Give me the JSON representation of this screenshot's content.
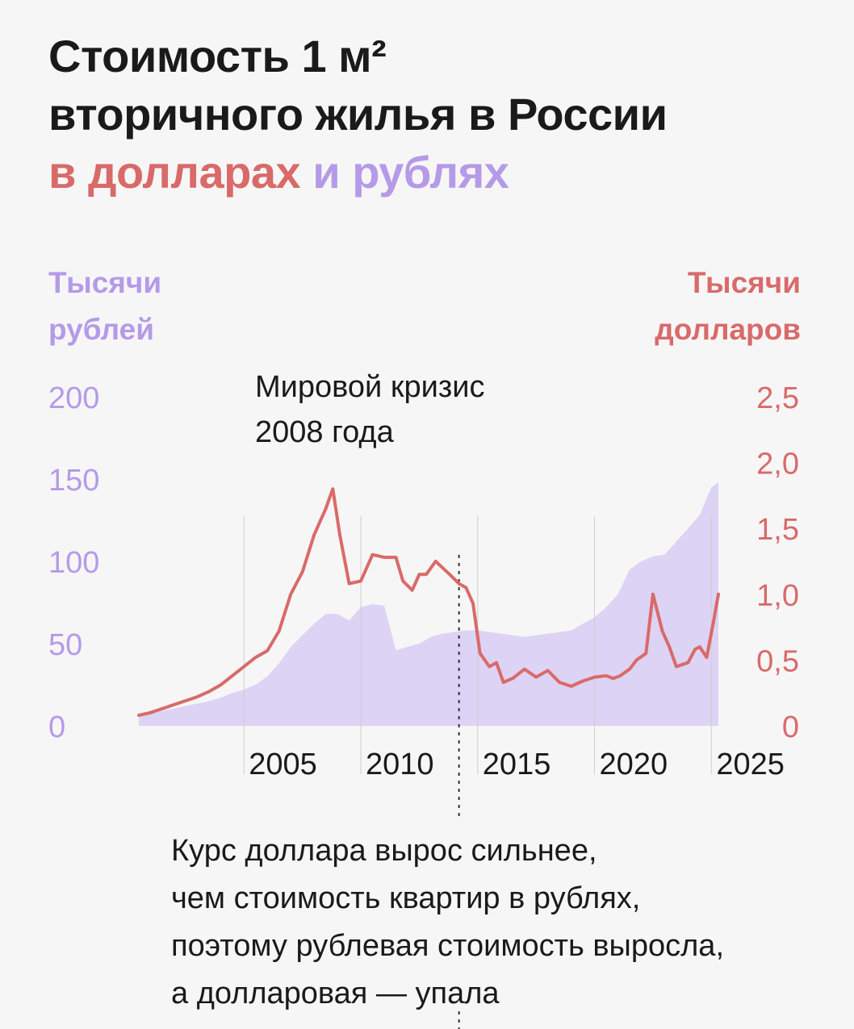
{
  "title": {
    "line1": "Стоимость 1 м²",
    "line2": "вторичного жилья в России",
    "usd_part": "в долларах",
    "and_part": "и рублях"
  },
  "left_axis_title": [
    "Тысячи",
    "рублей"
  ],
  "right_axis_title": [
    "Тысячи",
    "долларов"
  ],
  "annotations": {
    "crisis": [
      "Мировой кризис",
      "2008 года"
    ],
    "explanation": [
      "Курс доллара вырос сильнее,",
      "чем стоимость квартир в рублях,",
      "поэтому рублевая стоимость выросла,",
      "а долларовая — упала"
    ]
  },
  "colors": {
    "background": "#f7f6f6",
    "usd_line": "#d96a6a",
    "rub_area": "#ddd3f5",
    "rub_text": "#b59ae8",
    "text": "#1a1a1a"
  },
  "chart_data": {
    "type": "area",
    "xlim": [
      2000,
      2024.8
    ],
    "y_left": {
      "unit": "Тысячи рублей",
      "range": [
        0,
        200
      ],
      "ticks": [
        0,
        50,
        100,
        150,
        200
      ],
      "tick_labels": [
        "0",
        "50",
        "100",
        "150",
        "200"
      ]
    },
    "y_right": {
      "unit": "Тысячи долларов",
      "range": [
        0,
        2.5
      ],
      "ticks": [
        0,
        0.5,
        1.0,
        1.5,
        2.0,
        2.5
      ],
      "tick_labels": [
        "0",
        "0,5",
        "1,0",
        "1,5",
        "2,0",
        "2,5"
      ]
    },
    "x_ticks": [
      2005,
      2010,
      2015,
      2020,
      2025
    ],
    "x_tick_labels": [
      "2005",
      "2010",
      "2015",
      "2020",
      "2025"
    ],
    "series": [
      {
        "name": "в рублях",
        "axis": "left",
        "type": "area",
        "x": [
          2000,
          2000.5,
          2001,
          2001.5,
          2002,
          2002.5,
          2003,
          2003.5,
          2004,
          2004.5,
          2005,
          2005.5,
          2006,
          2006.5,
          2007,
          2007.5,
          2008,
          2008.5,
          2009,
          2009.5,
          2010,
          2010.5,
          2011,
          2011.5,
          2012,
          2012.5,
          2013,
          2013.5,
          2014,
          2014.5,
          2015,
          2015.5,
          2016,
          2016.5,
          2017,
          2017.5,
          2018,
          2018.5,
          2019,
          2019.5,
          2020,
          2020.5,
          2021,
          2021.5,
          2022,
          2022.5,
          2023,
          2023.5,
          2024,
          2024.5,
          2024.8
        ],
        "values": [
          6,
          7,
          9,
          10.5,
          12,
          13.5,
          15,
          17,
          20,
          22,
          25,
          30,
          38,
          48,
          55,
          62,
          68,
          68,
          64,
          72,
          74,
          73,
          46,
          48,
          50,
          54,
          56,
          57,
          58,
          58,
          57,
          56,
          55,
          54,
          55,
          56,
          57,
          58,
          62,
          66,
          72,
          80,
          95,
          100,
          103,
          104,
          112,
          120,
          128,
          145,
          148
        ]
      },
      {
        "name": "в долларах",
        "axis": "right",
        "type": "line",
        "x": [
          2000,
          2000.5,
          2001,
          2001.5,
          2002,
          2002.5,
          2003,
          2003.5,
          2004,
          2004.5,
          2005,
          2005.5,
          2006,
          2006.5,
          2007,
          2007.5,
          2008,
          2008.3,
          2008.6,
          2009,
          2009.5,
          2010,
          2010.5,
          2011,
          2011.3,
          2011.7,
          2012,
          2012.3,
          2012.7,
          2013,
          2013.3,
          2013.7,
          2014,
          2014.3,
          2014.6,
          2015,
          2015.3,
          2015.6,
          2016,
          2016.5,
          2017,
          2017.5,
          2018,
          2018.5,
          2019,
          2019.5,
          2020,
          2020.3,
          2020.6,
          2021,
          2021.3,
          2021.7,
          2022,
          2022.4,
          2022.7,
          2023,
          2023.5,
          2023.8,
          2024,
          2024.3,
          2024.6,
          2024.8
        ],
        "values": [
          0.08,
          0.1,
          0.13,
          0.16,
          0.19,
          0.22,
          0.26,
          0.31,
          0.38,
          0.45,
          0.52,
          0.57,
          0.72,
          1.0,
          1.17,
          1.45,
          1.65,
          1.8,
          1.45,
          1.08,
          1.1,
          1.3,
          1.28,
          1.28,
          1.1,
          1.03,
          1.15,
          1.15,
          1.25,
          1.2,
          1.15,
          1.08,
          1.05,
          0.93,
          0.55,
          0.45,
          0.48,
          0.33,
          0.36,
          0.43,
          0.37,
          0.42,
          0.33,
          0.3,
          0.34,
          0.37,
          0.38,
          0.36,
          0.38,
          0.43,
          0.5,
          0.55,
          1.0,
          0.72,
          0.6,
          0.45,
          0.48,
          0.58,
          0.6,
          0.52,
          0.8,
          1.0
        ]
      }
    ],
    "annotations": [
      {
        "x": 2013.7,
        "text": "Курс доллара вырос сильнее, чем стоимость квартир в рублях, поэтому рублевая стоимость выросла, а долларовая — упала"
      },
      {
        "x": 2008.3,
        "text": "Мировой кризис 2008 года"
      }
    ]
  }
}
